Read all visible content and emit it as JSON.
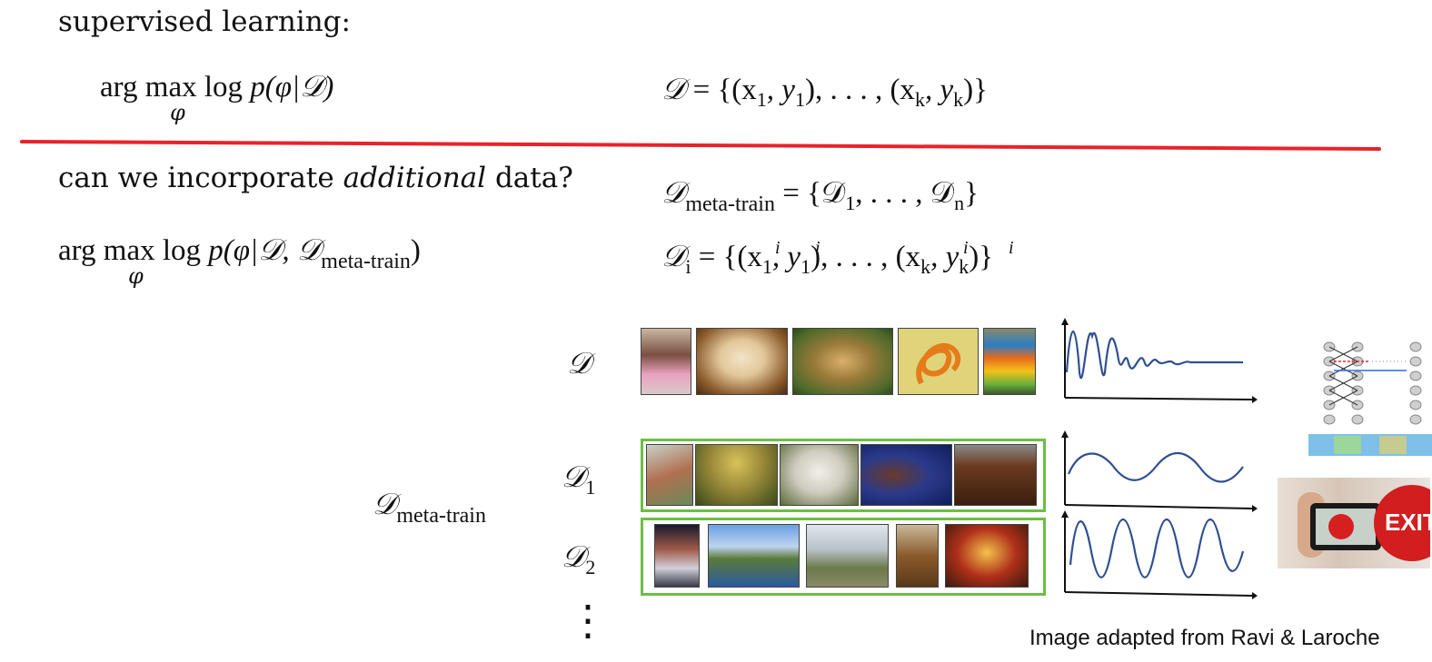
{
  "supervised": {
    "heading": "supervised learning:",
    "objective": {
      "argmax": "arg max",
      "log": "log",
      "p": "p",
      "args": "(φ|𝒟)",
      "under": "φ"
    },
    "dataset": {
      "lhs": "𝒟",
      "rhs": "= {(x",
      "s1": "1",
      "c1": ", y",
      "s2": "1",
      "mid": "), . . . , (x",
      "s3": "k",
      "c2": ", y",
      "s4": "k",
      "end": ")}"
    }
  },
  "additional": {
    "question_pre": "can we incorporate",
    "question_em": "additional",
    "question_post": "data?",
    "objective": {
      "argmax": "arg max",
      "log": "log",
      "p": "p",
      "args_pre": "(φ|𝒟, 𝒟",
      "args_sub": "meta-train",
      "args_post": ")",
      "under": "φ"
    },
    "meta_train": {
      "lhs": "𝒟",
      "lhs_sub": "meta-train",
      "rhs_pre": "= {𝒟",
      "s1": "1",
      "mid": ", . . . , 𝒟",
      "sn": "n",
      "end": "}"
    },
    "task": {
      "lhs": "𝒟",
      "lhs_sub": "i",
      "rhs": "= {(x",
      "s1": "1",
      "c1": ", y",
      "s2": "1",
      "mid": "), . . . , (x",
      "s3": "k",
      "c2": ", y",
      "s4": "k",
      "end": ")}",
      "sup": "i"
    }
  },
  "figure": {
    "row_label_d": "𝒟",
    "row_label_d1": "𝒟",
    "row_label_d1_sub": "1",
    "row_label_d2": "𝒟",
    "row_label_d2_sub": "2",
    "meta_label": "𝒟",
    "meta_label_sub": "meta-train",
    "ellipsis": "⋮",
    "exit_sign": "EXIT",
    "caption": "Image adapted from Ravi & Laroche"
  },
  "colors": {
    "divider": "#e8232a",
    "green": "#6dbe45",
    "wave": "#2f4f8f"
  }
}
